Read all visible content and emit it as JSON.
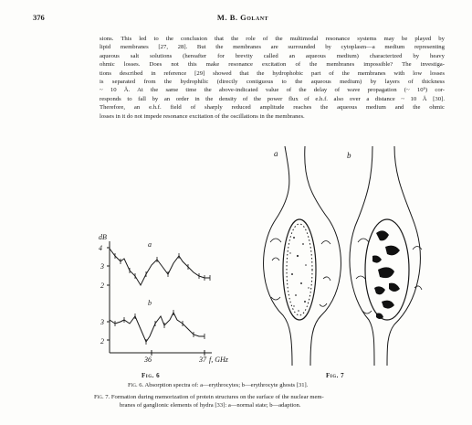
{
  "header": {
    "page_number": "376",
    "running_head": "M. B. Golant"
  },
  "body_text": [
    "sions. This led to the conclusion that the role of the multimodal resonance systems may be played by",
    "lipid membranes [27, 28]. But the membranes are surrounded by cytoplasm—a medium representing",
    "aqueous salt solutions (hereafter for brevity called an aqueous medium) characterized by heavy",
    "ohmic losses. Does not this make resonance excitation of the membranes impossible? The investiga-",
    "tions described in reference [29] showed that the hydrophobic part of the membranes with low losses",
    "is separated from the hydrophilic (directly contiguous to the aqueous medium) by layers of thickness",
    "~ 10 Å. At the same time the above-indicated value of the delay of wave propagation (~ 10⁶) cor-",
    "responds to fall by an order in the density of the power flux of e.h.f. also over a distance ~ 10 Å [30].",
    "Therefore, an e.h.f. field of sharply reduced amplitude reaches the aqueous medium and the ohmic",
    "losses in it do not impede resonance excitation of the oscillations in the membranes."
  ],
  "figure6": {
    "label": "Fig. 6",
    "y_unit": "dB",
    "x_unit": "f, GHz",
    "curve_a_label": "a",
    "curve_b_label": "b",
    "y_ticks_a": [
      "4",
      "3",
      "2"
    ],
    "y_ticks_b": [
      "3",
      "2"
    ],
    "x_ticks": [
      "36",
      "37"
    ]
  },
  "figure7": {
    "label": "Fig. 7",
    "panel_a": "a",
    "panel_b": "b"
  },
  "captions": {
    "fig6_prefix": "Fig. 6.",
    "fig6": "Absorption spectra of: a—erythrocytes; b—erythrocyte ghosts [31].",
    "fig7_prefix": "Fig. 7.",
    "fig7_line1": "Formation during memorization of protein structures on the surface of the nuclear mem-",
    "fig7_line2": "branes of ganglionic elements of hydra [33]: a—normal state; b—adaption."
  }
}
